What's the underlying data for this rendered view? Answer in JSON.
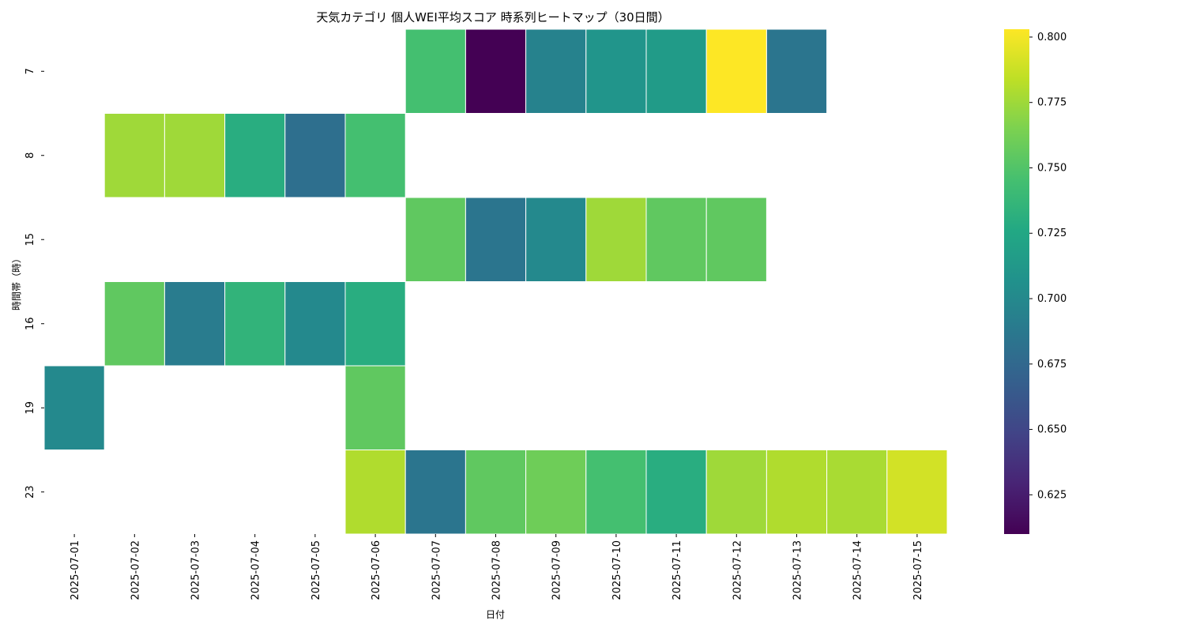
{
  "chart_data": {
    "type": "heatmap",
    "title": "天気カテゴリ 個人WEI平均スコア 時系列ヒートマップ（30日間）",
    "xlabel": "日付",
    "ylabel": "時間帯（時）",
    "x_categories": [
      "2025-07-01",
      "2025-07-02",
      "2025-07-03",
      "2025-07-04",
      "2025-07-05",
      "2025-07-06",
      "2025-07-07",
      "2025-07-08",
      "2025-07-09",
      "2025-07-10",
      "2025-07-11",
      "2025-07-12",
      "2025-07-13",
      "2025-07-14",
      "2025-07-15"
    ],
    "y_categories": [
      "7",
      "8",
      "15",
      "16",
      "19",
      "23"
    ],
    "values": [
      [
        null,
        null,
        null,
        null,
        null,
        null,
        0.745,
        0.61,
        0.695,
        0.71,
        0.715,
        0.803,
        0.685,
        null,
        null
      ],
      [
        null,
        0.775,
        0.775,
        0.73,
        0.68,
        0.745,
        null,
        null,
        null,
        null,
        null,
        null,
        null,
        null,
        null
      ],
      [
        null,
        null,
        null,
        null,
        null,
        null,
        0.755,
        0.685,
        0.7,
        0.775,
        0.755,
        0.755,
        null,
        null,
        null
      ],
      [
        null,
        0.755,
        0.69,
        0.735,
        0.7,
        0.73,
        null,
        null,
        null,
        null,
        null,
        null,
        null,
        null,
        null
      ],
      [
        0.7,
        null,
        null,
        null,
        null,
        0.755,
        null,
        null,
        null,
        null,
        null,
        null,
        null,
        null,
        null
      ],
      [
        null,
        null,
        null,
        null,
        null,
        0.78,
        0.685,
        0.755,
        0.76,
        0.745,
        0.73,
        0.775,
        0.78,
        0.778,
        0.79
      ]
    ],
    "colormap": "viridis",
    "vmin": 0.61,
    "vmax": 0.803,
    "colorbar_ticks": [
      0.625,
      0.65,
      0.675,
      0.7,
      0.725,
      0.75,
      0.775,
      0.8
    ],
    "colorbar_tick_labels": [
      "0.625",
      "0.650",
      "0.675",
      "0.700",
      "0.725",
      "0.750",
      "0.775",
      "0.800"
    ]
  }
}
